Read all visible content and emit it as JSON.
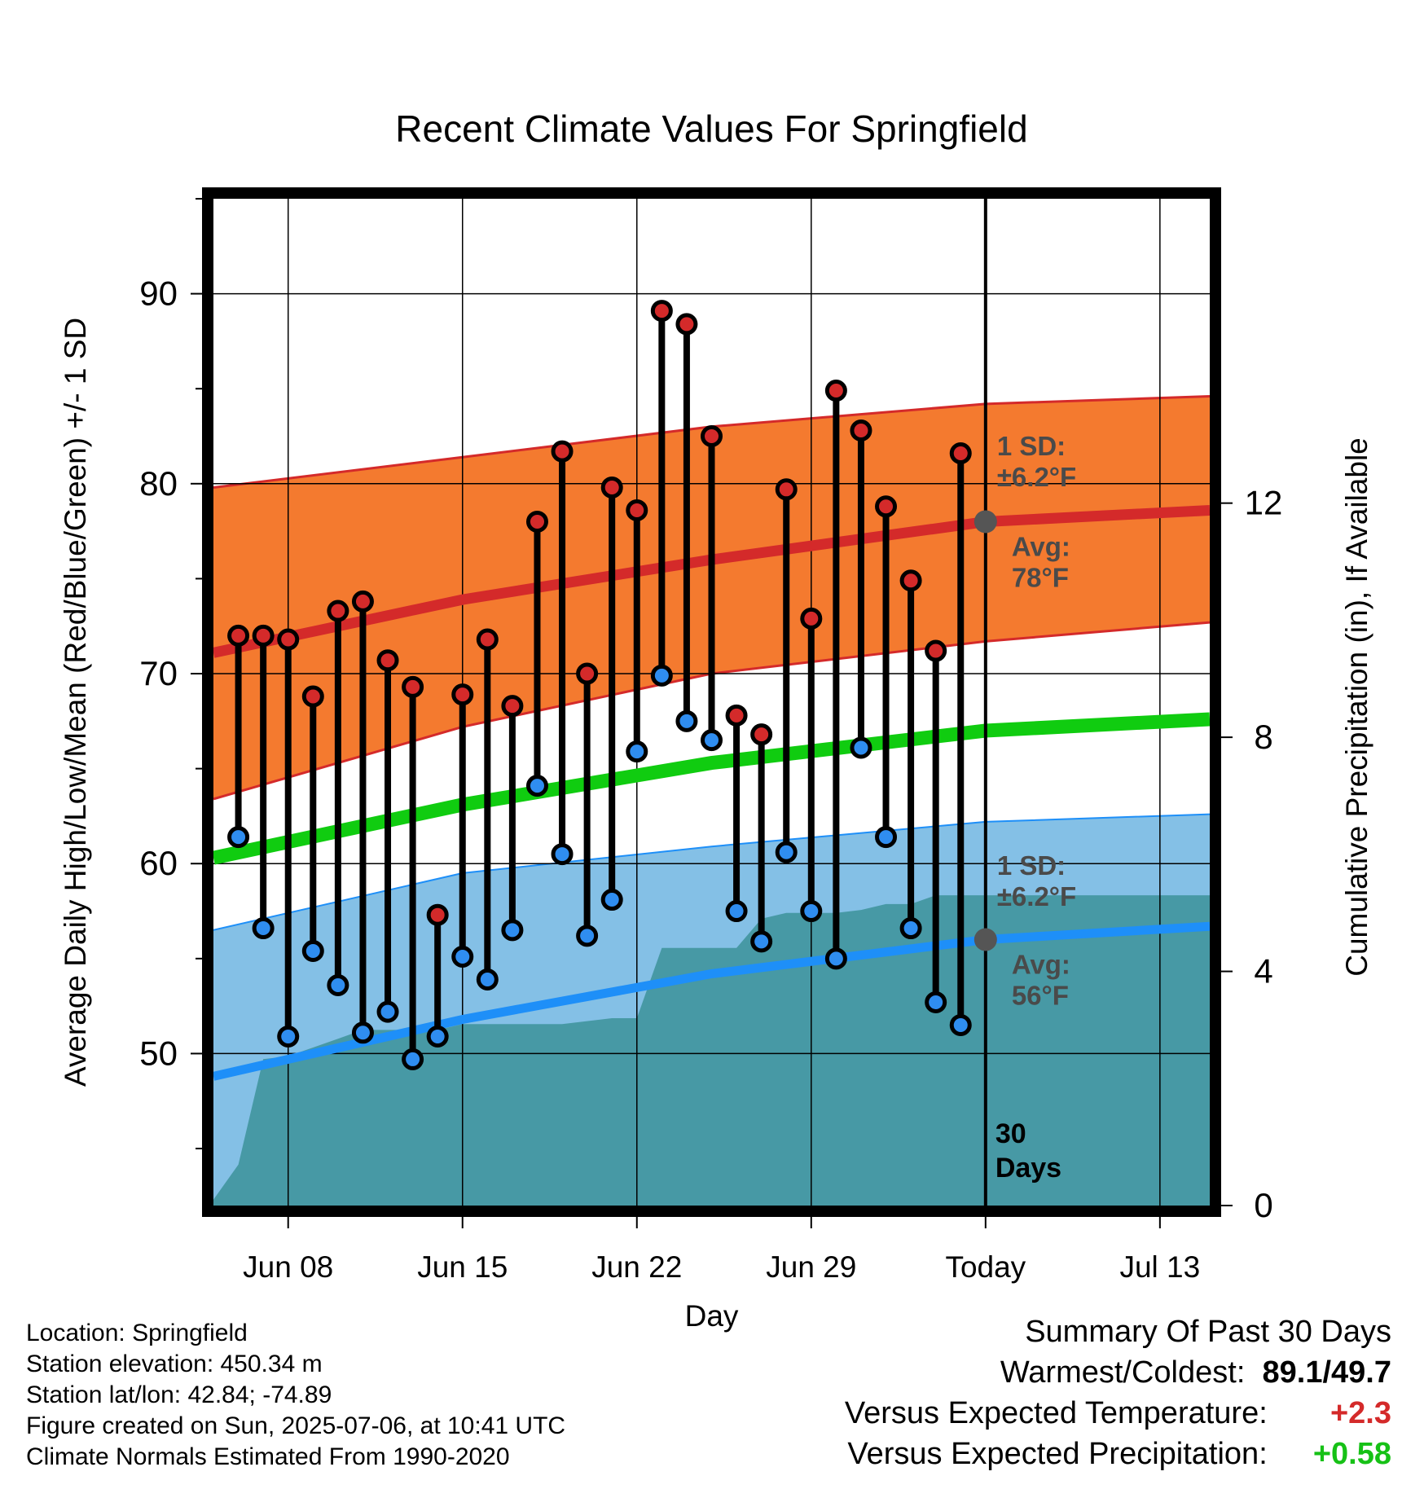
{
  "chart_data": {
    "type": "line",
    "title": "Recent Climate Values For Springfield",
    "xlabel": "Day",
    "ylabel": "Average Daily High/Low/Mean (Red/Blue/Green) +/- 1 SD",
    "y2label": "Cumulative Precipitation (in), If Available",
    "ylim": [
      42,
      95
    ],
    "y2lim": [
      0,
      17.2
    ],
    "yticks": [
      "50",
      "60",
      "70",
      "80",
      "90"
    ],
    "y2ticks": [
      "0",
      "4",
      "8",
      "12"
    ],
    "x_tick_labels": [
      "Jun 08",
      "Jun 15",
      "Jun 22",
      "Jun 29",
      "Today",
      "Jul 13"
    ],
    "x_tick_dates": [
      "2025-06-08",
      "2025-06-15",
      "2025-06-22",
      "2025-06-29",
      "2025-07-06",
      "2025-07-13"
    ],
    "xlim": [
      "2025-06-05",
      "2025-07-15"
    ],
    "today": "2025-07-06",
    "today_label": "30\nDays",
    "grid": true,
    "observed": {
      "dates": [
        "2025-06-06",
        "2025-06-07",
        "2025-06-08",
        "2025-06-09",
        "2025-06-10",
        "2025-06-11",
        "2025-06-12",
        "2025-06-13",
        "2025-06-14",
        "2025-06-15",
        "2025-06-16",
        "2025-06-17",
        "2025-06-18",
        "2025-06-19",
        "2025-06-20",
        "2025-06-21",
        "2025-06-22",
        "2025-06-23",
        "2025-06-24",
        "2025-06-25",
        "2025-06-26",
        "2025-06-27",
        "2025-06-28",
        "2025-06-29",
        "2025-06-30",
        "2025-07-01",
        "2025-07-02",
        "2025-07-03",
        "2025-07-04",
        "2025-07-05"
      ],
      "high": [
        72.0,
        72.0,
        71.8,
        68.8,
        73.3,
        73.8,
        70.7,
        69.3,
        57.3,
        68.9,
        71.8,
        68.3,
        78.0,
        81.7,
        70.0,
        79.8,
        78.6,
        89.1,
        88.4,
        82.5,
        67.8,
        66.8,
        79.7,
        72.9,
        84.9,
        82.8,
        78.8,
        74.9,
        71.2,
        81.6
      ],
      "low": [
        61.4,
        56.6,
        50.9,
        55.4,
        53.6,
        51.1,
        52.2,
        49.7,
        50.9,
        55.1,
        53.9,
        56.5,
        64.1,
        60.5,
        56.2,
        58.1,
        65.9,
        69.9,
        67.5,
        66.5,
        57.5,
        55.9,
        60.6,
        57.5,
        55.0,
        66.1,
        61.4,
        56.6,
        52.7,
        51.5
      ],
      "high_color": "#d42a2a",
      "low_color": "#2f8df0"
    },
    "normals": {
      "dates": [
        "2025-06-05",
        "2025-06-15",
        "2025-06-25",
        "2025-07-06",
        "2025-07-15"
      ],
      "high_avg": [
        71.1,
        73.9,
        76.0,
        78.0,
        78.6
      ],
      "high_upper": [
        79.8,
        81.4,
        83.0,
        84.2,
        84.6
      ],
      "high_lower": [
        63.4,
        67.2,
        70.0,
        71.7,
        72.7
      ],
      "low_avg": [
        48.8,
        51.8,
        54.2,
        56.0,
        56.7
      ],
      "low_upper": [
        56.5,
        59.5,
        60.9,
        62.2,
        62.6
      ],
      "low_lower": [
        42.0,
        42.0,
        42.0,
        42.0,
        42.0
      ],
      "mean_avg": [
        60.3,
        63.1,
        65.3,
        67.0,
        67.6
      ],
      "high_band_color": "#f47a2f",
      "high_line_color": "#d42a2a",
      "low_band_color": "#84c0e6",
      "low_line_color": "#1e8ff8",
      "mean_line_color": "#10cc10"
    },
    "precipitation": {
      "dates": [
        "2025-06-05",
        "2025-06-06",
        "2025-06-07",
        "2025-06-08",
        "2025-06-09",
        "2025-06-10",
        "2025-06-11",
        "2025-06-12",
        "2025-06-13",
        "2025-06-14",
        "2025-06-15",
        "2025-06-16",
        "2025-06-17",
        "2025-06-18",
        "2025-06-19",
        "2025-06-20",
        "2025-06-21",
        "2025-06-22",
        "2025-06-23",
        "2025-06-24",
        "2025-06-25",
        "2025-06-26",
        "2025-06-27",
        "2025-06-28",
        "2025-06-29",
        "2025-06-30",
        "2025-07-01",
        "2025-07-02",
        "2025-07-03",
        "2025-07-04",
        "2025-07-05",
        "2025-07-06",
        "2025-07-15"
      ],
      "cumulative": [
        0.1,
        0.7,
        2.5,
        2.55,
        2.7,
        2.85,
        3.0,
        3.0,
        3.0,
        3.0,
        3.1,
        3.1,
        3.1,
        3.1,
        3.1,
        3.15,
        3.2,
        3.2,
        4.4,
        4.4,
        4.4,
        4.4,
        4.9,
        5.0,
        5.0,
        5.0,
        5.05,
        5.15,
        5.15,
        5.3,
        5.3,
        5.3,
        5.3
      ],
      "color": "#4799a5"
    },
    "annotations": {
      "high_sd": "1 SD:\n±6.2°F",
      "high_avg": "Avg:\n78°F",
      "low_sd": "1 SD:\n±6.2°F",
      "low_avg": "Avg:\n56°F",
      "color": "#4a4a4a",
      "today_marker_color": "#555555"
    }
  },
  "info": {
    "location": "Location: Springfield",
    "elevation": "Station elevation: 450.34 m",
    "latlon": "Station lat/lon: 42.84; -74.89",
    "created": "Figure created on Sun, 2025-07-06, at 10:41 UTC",
    "normals_period": "Climate Normals Estimated From 1990-2020"
  },
  "summary": {
    "heading": "Summary Of Past 30 Days",
    "warm_cold_label": "Warmest/Coldest:",
    "warm_cold_value": "89.1/49.7",
    "temp_label": "Versus Expected Temperature:",
    "temp_value": "+2.3",
    "precip_label": "Versus Expected Precipitation:",
    "precip_value": "+0.58"
  }
}
